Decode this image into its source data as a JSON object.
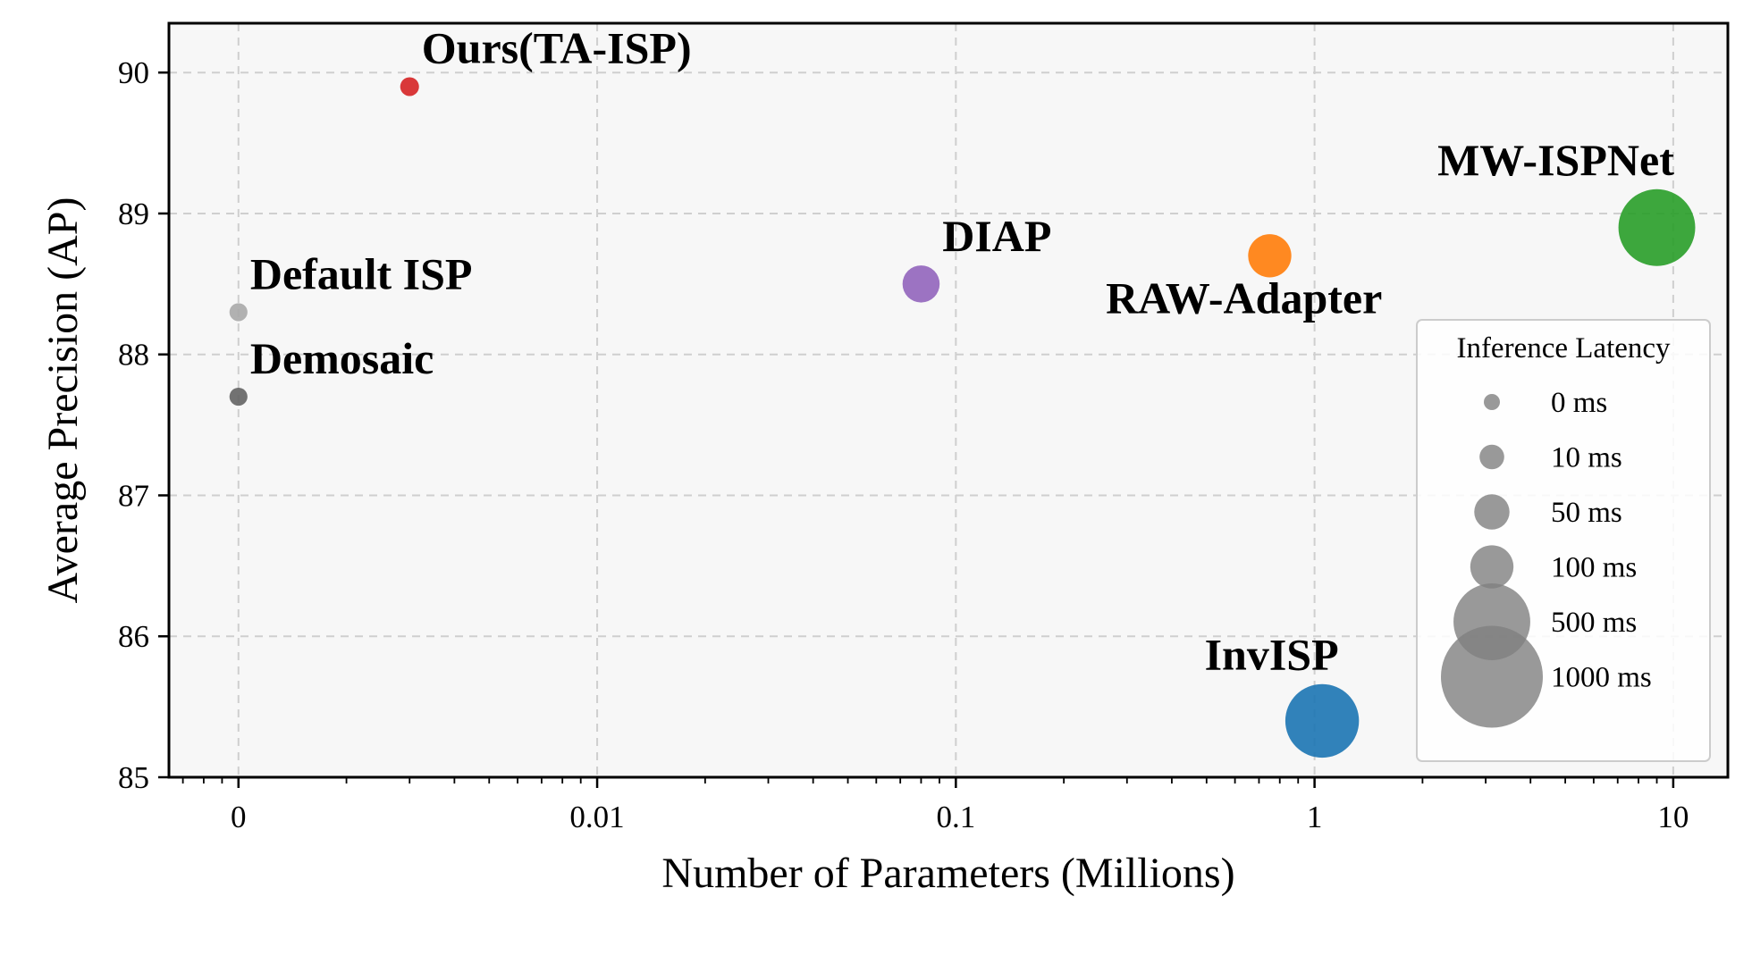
{
  "chart_data": {
    "type": "scatter",
    "xscale": "log",
    "xlabel": "Number of Parameters (Millions)",
    "ylabel": "Average Precision (AP)",
    "xticks": [
      {
        "value": 0.001,
        "label": "0"
      },
      {
        "value": 0.01,
        "label": "0.01"
      },
      {
        "value": 0.1,
        "label": "0.1"
      },
      {
        "value": 1,
        "label": "1"
      },
      {
        "value": 10,
        "label": "10"
      }
    ],
    "yticks": [
      85,
      86,
      87,
      88,
      89,
      90
    ],
    "xlim": [
      0.00064,
      14.2
    ],
    "ylim": [
      85,
      90.35
    ],
    "grid": true,
    "points": [
      {
        "name": "Ours(TA-ISP)",
        "x": 0.003,
        "y": 89.9,
        "latency_ms": 1,
        "color": "#d62728",
        "label_pos": "above-right"
      },
      {
        "name": "Default ISP",
        "x": 0.001,
        "y": 88.3,
        "latency_ms": 0.5,
        "color": "#aaaaaa",
        "label_pos": "above-right"
      },
      {
        "name": "Demosaic",
        "x": 0.001,
        "y": 87.7,
        "latency_ms": 0.5,
        "color": "#666666",
        "label_pos": "above-right"
      },
      {
        "name": "DIAP",
        "x": 0.08,
        "y": 88.5,
        "latency_ms": 60,
        "color": "#9467bd",
        "label_pos": "above-right"
      },
      {
        "name": "RAW-Adapter",
        "x": 0.75,
        "y": 88.7,
        "latency_ms": 100,
        "color": "#ff7f0e",
        "label_pos": "below-left"
      },
      {
        "name": "MW-ISPNet",
        "x": 9.0,
        "y": 88.9,
        "latency_ms": 500,
        "color": "#2ca02c",
        "label_pos": "above-left"
      },
      {
        "name": "InvISP",
        "x": 1.05,
        "y": 85.4,
        "latency_ms": 450,
        "color": "#1f77b4",
        "label_pos": "above-left"
      }
    ],
    "legend": {
      "title": "Inference Latency",
      "placement": "lower-right",
      "entries": [
        {
          "label": "0 ms",
          "latency_ms": 0
        },
        {
          "label": "10 ms",
          "latency_ms": 10
        },
        {
          "label": "50 ms",
          "latency_ms": 50
        },
        {
          "label": "100 ms",
          "latency_ms": 100
        },
        {
          "label": "500 ms",
          "latency_ms": 500
        },
        {
          "label": "1000 ms",
          "latency_ms": 1000
        }
      ]
    }
  }
}
